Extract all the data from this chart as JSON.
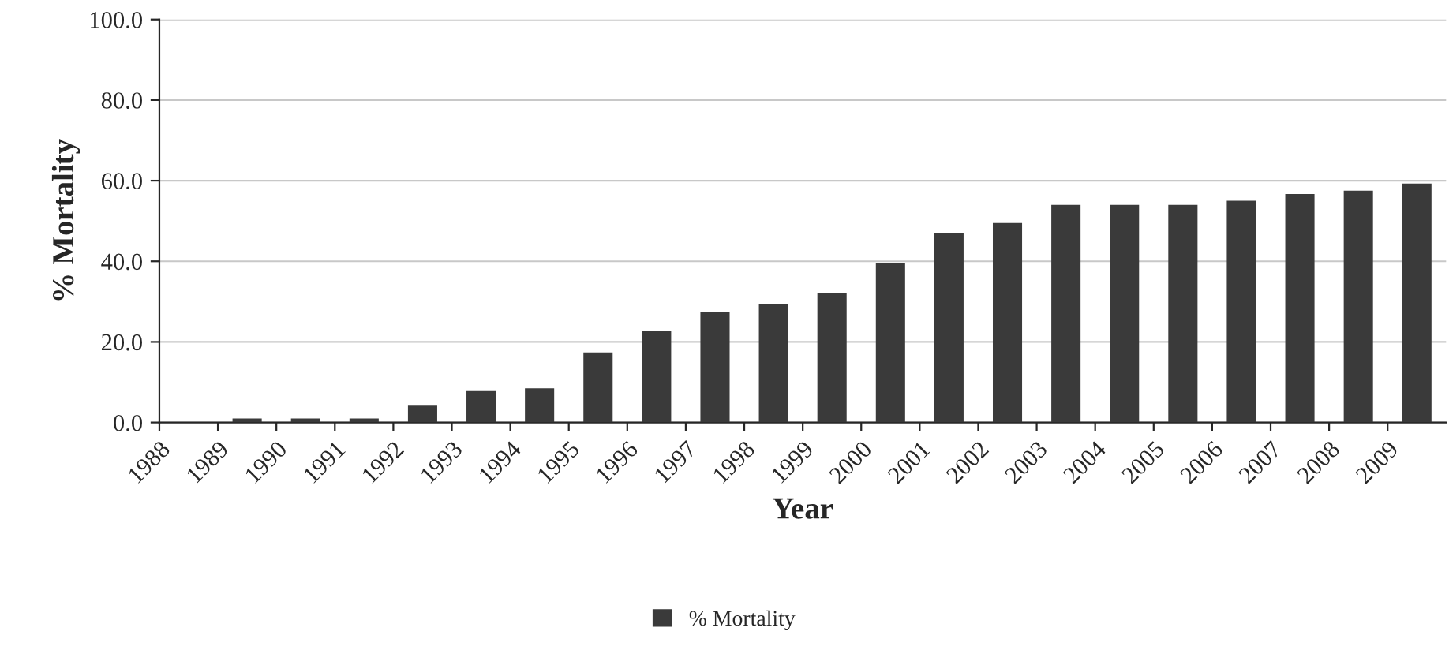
{
  "chart_data": {
    "type": "bar",
    "xlabel": "Year",
    "ylabel": "% Mortality",
    "categories": [
      "1988",
      "1989",
      "1990",
      "1991",
      "1992",
      "1993",
      "1994",
      "1995",
      "1996",
      "1997",
      "1998",
      "1999",
      "2000",
      "2001",
      "2002",
      "2003",
      "2004",
      "2005",
      "2006",
      "2007",
      "2008",
      "2009"
    ],
    "series": [
      {
        "name": "% Mortality",
        "color": "#3a3a3a",
        "values": [
          null,
          1,
          1,
          1,
          4.2,
          7.8,
          8.5,
          17.4,
          22.7,
          27.5,
          29.3,
          32,
          39.5,
          47,
          49.5,
          54,
          54,
          54,
          55,
          56.7,
          57.5,
          59.3
        ]
      }
    ],
    "ylim": [
      0,
      100
    ],
    "yticks": [
      {
        "value": 0,
        "label": "0.0"
      },
      {
        "value": 20,
        "label": "20.0"
      },
      {
        "value": 40,
        "label": "40.0"
      },
      {
        "value": 60,
        "label": "60.0"
      },
      {
        "value": 80,
        "label": "80.0"
      },
      {
        "value": 100,
        "label": "100.0"
      }
    ],
    "grid": "y",
    "legend": "bottom"
  }
}
